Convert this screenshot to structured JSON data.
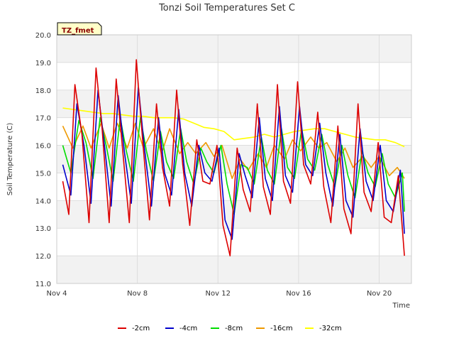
{
  "chart_data": {
    "type": "line",
    "title": "Tonzi Soil Temperatures Set C",
    "xlabel": "Time",
    "ylabel": "Soil Temperature (C)",
    "badge": "TZ_fmet",
    "xlim": [
      4.0,
      21.6
    ],
    "ylim": [
      11.0,
      20.0
    ],
    "x_ticks": [
      4,
      8,
      12,
      16,
      20
    ],
    "x_tick_labels": [
      "Nov 4",
      "Nov 8",
      "Nov 12",
      "Nov 16",
      "Nov 20"
    ],
    "y_ticks": [
      11.0,
      12.0,
      13.0,
      14.0,
      15.0,
      16.0,
      17.0,
      18.0,
      19.0,
      20.0
    ],
    "y_tick_labels": [
      "11.0",
      "12.0",
      "13.0",
      "14.0",
      "15.0",
      "16.0",
      "17.0",
      "18.0",
      "19.0",
      "20.0"
    ],
    "grid": true,
    "legend_position": "bottom",
    "series": [
      {
        "name": "-2cm",
        "color": "#dd0000",
        "x": [
          4.3,
          4.6,
          4.9,
          5.25,
          5.6,
          5.95,
          6.25,
          6.6,
          6.95,
          7.25,
          7.6,
          7.95,
          8.25,
          8.6,
          8.95,
          9.25,
          9.6,
          9.95,
          10.25,
          10.6,
          10.95,
          11.25,
          11.6,
          11.95,
          12.25,
          12.6,
          12.95,
          13.25,
          13.6,
          13.95,
          14.25,
          14.6,
          14.95,
          15.25,
          15.6,
          15.95,
          16.25,
          16.6,
          16.95,
          17.25,
          17.6,
          17.95,
          18.25,
          18.6,
          18.95,
          19.25,
          19.6,
          19.95,
          20.25,
          20.6,
          20.95,
          21.25
        ],
        "y": [
          14.7,
          13.5,
          18.2,
          16.4,
          13.2,
          18.8,
          16.6,
          13.2,
          18.4,
          16.0,
          13.2,
          19.1,
          16.3,
          13.3,
          17.5,
          15.2,
          13.8,
          18.0,
          15.3,
          13.1,
          16.2,
          14.7,
          14.6,
          16.0,
          13.1,
          12.0,
          15.9,
          14.4,
          13.6,
          17.5,
          14.5,
          13.5,
          18.2,
          14.7,
          13.9,
          18.3,
          15.3,
          14.6,
          17.2,
          14.5,
          13.2,
          16.7,
          13.7,
          12.8,
          17.5,
          14.3,
          13.6,
          16.1,
          13.4,
          13.2,
          14.9,
          12.0
        ]
      },
      {
        "name": "-4cm",
        "color": "#0000cc",
        "x": [
          4.3,
          4.7,
          5.0,
          5.35,
          5.7,
          6.05,
          6.35,
          6.7,
          7.05,
          7.35,
          7.7,
          8.05,
          8.35,
          8.7,
          9.05,
          9.35,
          9.7,
          10.05,
          10.35,
          10.7,
          11.05,
          11.35,
          11.7,
          12.05,
          12.35,
          12.7,
          13.05,
          13.35,
          13.7,
          14.05,
          14.35,
          14.7,
          15.05,
          15.35,
          15.7,
          16.05,
          16.35,
          16.7,
          17.05,
          17.35,
          17.7,
          18.05,
          18.35,
          18.7,
          19.05,
          19.35,
          19.7,
          20.05,
          20.35,
          20.7,
          21.05,
          21.25
        ],
        "y": [
          15.3,
          14.2,
          17.5,
          16.0,
          13.9,
          18.0,
          16.1,
          13.8,
          17.8,
          15.8,
          13.9,
          18.1,
          15.9,
          13.8,
          17.0,
          15.0,
          14.2,
          17.3,
          15.0,
          13.8,
          16.0,
          15.0,
          14.7,
          15.9,
          13.3,
          12.6,
          15.7,
          14.9,
          14.1,
          17.0,
          14.8,
          14.0,
          17.4,
          14.9,
          14.3,
          17.4,
          15.3,
          14.9,
          16.8,
          15.0,
          13.8,
          16.4,
          14.0,
          13.4,
          16.6,
          14.7,
          14.0,
          16.0,
          14.0,
          13.6,
          15.1,
          12.8
        ]
      },
      {
        "name": "-8cm",
        "color": "#00dd00",
        "x": [
          4.3,
          4.7,
          5.1,
          5.45,
          5.8,
          6.15,
          6.45,
          6.8,
          7.15,
          7.45,
          7.8,
          8.15,
          8.45,
          8.8,
          9.15,
          9.45,
          9.8,
          10.15,
          10.45,
          10.8,
          11.15,
          11.45,
          11.8,
          12.15,
          12.45,
          12.8,
          13.15,
          13.45,
          13.8,
          14.15,
          14.45,
          14.8,
          15.15,
          15.45,
          15.8,
          16.15,
          16.45,
          16.8,
          17.15,
          17.45,
          17.8,
          18.15,
          18.45,
          18.8,
          19.15,
          19.45,
          19.8,
          20.15,
          20.45,
          20.8,
          21.15,
          21.25
        ],
        "y": [
          16.0,
          15.0,
          16.9,
          16.1,
          14.8,
          17.0,
          16.0,
          14.7,
          17.0,
          15.8,
          14.7,
          17.0,
          15.8,
          14.7,
          16.5,
          15.4,
          14.8,
          16.6,
          15.4,
          14.6,
          15.9,
          15.4,
          15.0,
          16.0,
          14.6,
          13.5,
          15.3,
          15.2,
          14.6,
          16.3,
          15.1,
          14.6,
          16.6,
          15.2,
          14.8,
          16.6,
          15.5,
          15.1,
          16.4,
          15.3,
          14.5,
          16.0,
          14.9,
          14.1,
          15.8,
          15.0,
          14.5,
          15.7,
          14.6,
          14.1,
          15.0,
          13.6
        ]
      },
      {
        "name": "-16cm",
        "color": "#ee9900",
        "x": [
          4.3,
          4.8,
          5.3,
          5.7,
          6.2,
          6.6,
          7.0,
          7.5,
          7.9,
          8.3,
          8.8,
          9.2,
          9.6,
          10.1,
          10.5,
          10.9,
          11.4,
          11.8,
          12.2,
          12.7,
          13.1,
          13.5,
          14.0,
          14.4,
          14.8,
          15.3,
          15.7,
          16.1,
          16.6,
          17.0,
          17.4,
          17.9,
          18.3,
          18.7,
          19.2,
          19.6,
          20.0,
          20.5,
          20.9,
          21.25
        ],
        "y": [
          16.7,
          15.9,
          16.7,
          15.9,
          16.8,
          15.9,
          16.8,
          15.9,
          16.8,
          15.9,
          16.6,
          15.7,
          16.6,
          15.7,
          16.1,
          15.7,
          16.1,
          15.6,
          16.0,
          14.8,
          15.5,
          15.1,
          15.7,
          15.2,
          16.0,
          15.5,
          16.2,
          15.8,
          16.3,
          15.9,
          16.1,
          15.4,
          15.9,
          15.2,
          15.6,
          15.2,
          15.6,
          14.9,
          15.2,
          14.8
        ]
      },
      {
        "name": "-32cm",
        "color": "#ffff00",
        "x": [
          4.3,
          4.8,
          5.3,
          5.8,
          6.3,
          6.8,
          7.3,
          7.8,
          8.3,
          8.8,
          9.3,
          9.8,
          10.3,
          10.8,
          11.3,
          11.8,
          12.3,
          12.8,
          13.3,
          13.8,
          14.3,
          14.8,
          15.3,
          15.8,
          16.3,
          16.8,
          17.3,
          17.8,
          18.3,
          18.8,
          19.3,
          19.8,
          20.3,
          20.8,
          21.25
        ],
        "y": [
          17.35,
          17.3,
          17.25,
          17.2,
          17.15,
          17.15,
          17.1,
          17.05,
          17.05,
          17.0,
          17.0,
          17.0,
          16.95,
          16.8,
          16.65,
          16.6,
          16.5,
          16.2,
          16.25,
          16.3,
          16.4,
          16.3,
          16.4,
          16.5,
          16.55,
          16.6,
          16.6,
          16.5,
          16.4,
          16.3,
          16.25,
          16.2,
          16.2,
          16.1,
          15.95
        ]
      }
    ]
  }
}
